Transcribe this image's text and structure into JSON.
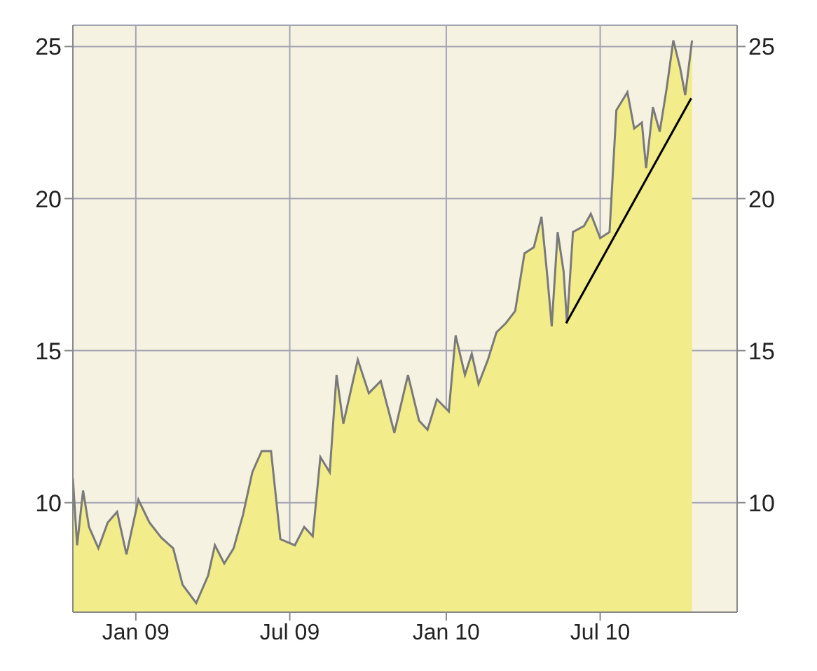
{
  "chart_data": {
    "type": "area",
    "xlim": [
      "2008-10-19",
      "2010-12-09"
    ],
    "xticks": [
      {
        "value": "2009-01-01",
        "label": "Jan 09"
      },
      {
        "value": "2009-07-01",
        "label": "Jul 09"
      },
      {
        "value": "2010-01-01",
        "label": "Jan 10"
      },
      {
        "value": "2010-07-01",
        "label": "Jul 10"
      }
    ],
    "ylim": [
      6.4,
      25.7
    ],
    "yticks": [
      10,
      15,
      20,
      25
    ],
    "y2lim": [
      6.4,
      25.7
    ],
    "y2ticks": [
      10,
      15,
      20,
      25
    ],
    "grid": true,
    "legend": false,
    "series": [
      {
        "color": "#f2ec8a",
        "x": [
          "2008-10-19",
          "2008-10-24",
          "2008-10-31",
          "2008-11-07",
          "2008-11-18",
          "2008-11-29",
          "2008-12-10",
          "2008-12-21",
          "2009-01-04",
          "2009-01-17",
          "2009-01-31",
          "2009-02-14",
          "2009-02-25",
          "2009-03-13",
          "2009-03-27",
          "2009-04-04",
          "2009-04-15",
          "2009-04-26",
          "2009-05-07",
          "2009-05-18",
          "2009-05-29",
          "2009-06-09",
          "2009-06-20",
          "2009-07-07",
          "2009-07-18",
          "2009-07-28",
          "2009-08-06",
          "2009-08-17",
          "2009-08-25",
          "2009-09-02",
          "2009-09-19",
          "2009-10-02",
          "2009-10-16",
          "2009-11-01",
          "2009-11-17",
          "2009-11-30",
          "2009-12-10",
          "2009-12-21",
          "2010-01-04",
          "2010-01-12",
          "2010-01-23",
          "2010-01-31",
          "2010-02-08",
          "2010-02-19",
          "2010-03-01",
          "2010-03-12",
          "2010-03-23",
          "2010-04-03",
          "2010-04-14",
          "2010-04-23",
          "2010-04-30",
          "2010-05-05",
          "2010-05-12",
          "2010-05-19",
          "2010-05-23",
          "2010-05-30",
          "2010-06-12",
          "2010-06-20",
          "2010-07-01",
          "2010-07-12",
          "2010-07-20",
          "2010-08-02",
          "2010-08-10",
          "2010-08-19",
          "2010-08-24",
          "2010-09-01",
          "2010-09-09",
          "2010-09-17",
          "2010-09-25",
          "2010-10-03",
          "2010-10-09",
          "2010-10-17"
        ],
        "values": [
          10.8,
          8.6,
          10.4,
          9.2,
          8.5,
          9.35,
          9.7,
          8.3,
          10.1,
          9.35,
          8.85,
          8.5,
          7.3,
          6.7,
          7.6,
          8.6,
          8.0,
          8.5,
          9.6,
          11.0,
          11.7,
          11.7,
          8.8,
          8.6,
          9.2,
          8.9,
          11.5,
          11.0,
          14.2,
          12.6,
          14.7,
          13.6,
          14.0,
          12.3,
          14.2,
          12.7,
          12.4,
          13.4,
          13.0,
          15.5,
          14.2,
          14.9,
          13.9,
          14.7,
          15.6,
          15.9,
          16.3,
          18.2,
          18.4,
          19.4,
          17.4,
          15.8,
          18.9,
          17.6,
          15.9,
          18.9,
          19.1,
          19.5,
          18.7,
          18.9,
          22.9,
          23.5,
          22.3,
          22.5,
          21.0,
          23.0,
          22.2,
          23.6,
          25.2,
          24.3,
          23.4,
          25.2
        ]
      },
      {
        "type": "line",
        "color": "#000000",
        "x": [
          "2010-05-22",
          "2010-10-16"
        ],
        "values": [
          15.9,
          23.3
        ]
      }
    ]
  }
}
